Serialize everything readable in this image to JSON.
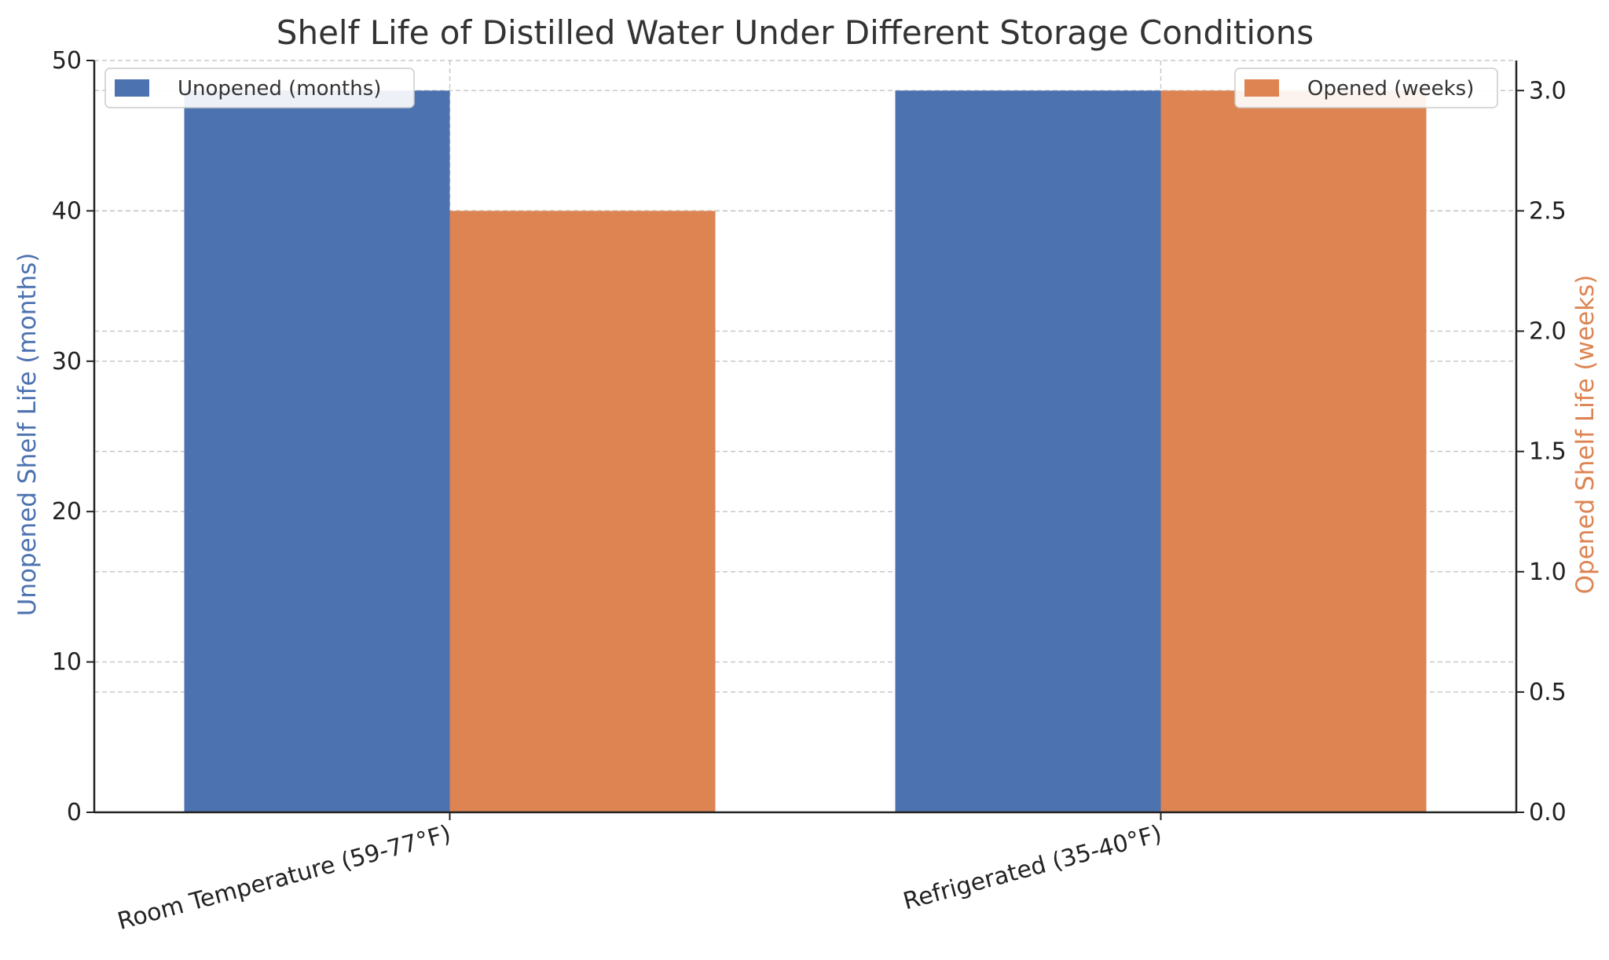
{
  "chart_data": {
    "type": "bar",
    "title": "Shelf Life of Distilled Water Under Different Storage Conditions",
    "categories": [
      "Room Temperature (59-77°F)",
      "Refrigerated (35-40°F)"
    ],
    "series": [
      {
        "name": "Unopened (months)",
        "axis": "left",
        "values": [
          48,
          48
        ],
        "color": "#4c72b0"
      },
      {
        "name": "Opened (weeks)",
        "axis": "right",
        "values": [
          2.5,
          3.0
        ],
        "color": "#dd8452"
      }
    ],
    "ylabel_left": "Unopened Shelf Life (months)",
    "ylabel_right": "Opened Shelf Life (weeks)",
    "ylim_left": [
      0,
      50
    ],
    "ylim_right": [
      0,
      3.125
    ],
    "yticks_left": [
      "0",
      "10",
      "20",
      "30",
      "40",
      "50"
    ],
    "yticks_right": [
      "0.0",
      "0.5",
      "1.0",
      "1.5",
      "2.0",
      "2.5",
      "3.0"
    ],
    "grid": true,
    "legend_left_placement": "top-left",
    "legend_right_placement": "top-right"
  }
}
